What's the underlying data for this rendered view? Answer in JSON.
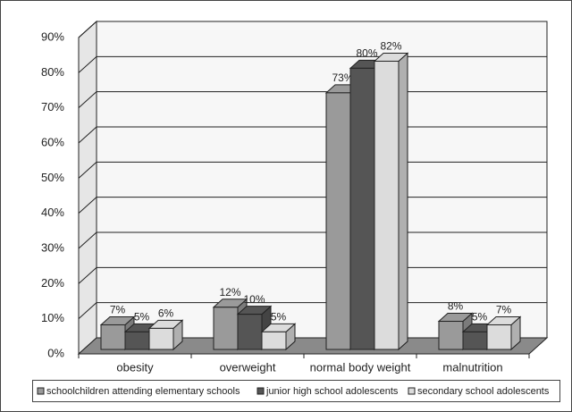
{
  "chart_data": {
    "type": "bar3d",
    "categories": [
      "obesity",
      "overweight",
      "normal body weight",
      "malnutrition"
    ],
    "series": [
      {
        "name": "schoolchildren  attending  elementary  schools",
        "color": "#9a9a9a",
        "values": [
          7,
          12,
          73,
          8
        ],
        "value_labels": [
          "7%",
          "12%",
          "73%",
          "8%"
        ]
      },
      {
        "name": "junior high school adolescents",
        "color": "#555555",
        "values": [
          5,
          10,
          80,
          5
        ],
        "value_labels": [
          "5%",
          "10%",
          "80%",
          "5%"
        ]
      },
      {
        "name": "secondary  school  adolescents",
        "color": "#dcdcdc",
        "values": [
          6,
          5,
          82,
          7
        ],
        "value_labels": [
          "6%",
          "5%",
          "82%",
          "7%"
        ]
      }
    ],
    "ylim": [
      0,
      90
    ],
    "yticks": [
      {
        "value": 0,
        "label": "0%"
      },
      {
        "value": 10,
        "label": "10%"
      },
      {
        "value": 20,
        "label": "20%"
      },
      {
        "value": 30,
        "label": "30%"
      },
      {
        "value": 40,
        "label": "40%"
      },
      {
        "value": 50,
        "label": "50%"
      },
      {
        "value": 60,
        "label": "60%"
      },
      {
        "value": 70,
        "label": "70%"
      },
      {
        "value": 80,
        "label": "80%"
      },
      {
        "value": 90,
        "label": "90%"
      }
    ],
    "grid": true
  }
}
